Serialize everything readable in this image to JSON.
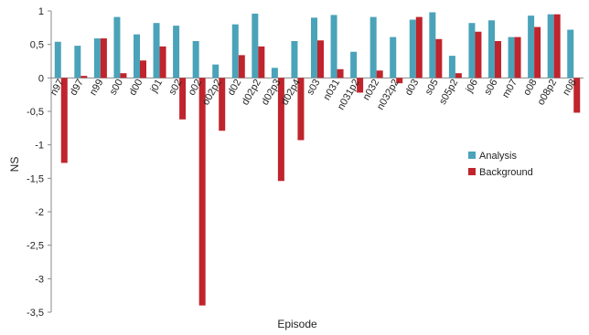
{
  "chart_data": {
    "type": "bar",
    "title": "",
    "xlabel": "Episode",
    "ylabel": "NS",
    "ylim": [
      -3.5,
      1
    ],
    "yticks": [
      "1",
      "0,5",
      "0",
      "-0,5",
      "-1",
      "-1,5",
      "-2",
      "-2,5",
      "-3",
      "-3,5"
    ],
    "grid": false,
    "legend_position": "right",
    "categories": [
      "n97",
      "d97",
      "n99",
      "s00",
      "d00",
      "j01",
      "s02",
      "o02",
      "o02p2",
      "d02",
      "d02p2",
      "d02p3",
      "d02p4",
      "s03",
      "n031",
      "n031p2",
      "n032",
      "n032p2",
      "d03",
      "s05",
      "s05p2",
      "j06",
      "s06",
      "m07",
      "o08",
      "o08p2",
      "n08"
    ],
    "series": [
      {
        "name": "Analysis",
        "color": "#4aa3b9",
        "values": [
          0.54,
          0.48,
          0.59,
          0.91,
          0.65,
          0.82,
          0.78,
          0.55,
          0.2,
          0.8,
          0.96,
          0.15,
          0.55,
          0.9,
          0.94,
          0.39,
          0.91,
          0.61,
          0.87,
          0.98,
          0.33,
          0.82,
          0.86,
          0.61,
          0.93,
          0.95,
          0.72
        ]
      },
      {
        "name": "Background",
        "color": "#c0242c",
        "values": [
          -1.27,
          0.03,
          0.59,
          0.07,
          0.26,
          0.47,
          -0.62,
          -3.4,
          -0.79,
          0.34,
          0.47,
          -1.54,
          -0.93,
          0.56,
          0.13,
          -0.22,
          0.11,
          -0.08,
          0.91,
          0.58,
          0.07,
          0.69,
          0.55,
          0.61,
          0.76,
          0.95,
          -0.52
        ]
      }
    ]
  }
}
